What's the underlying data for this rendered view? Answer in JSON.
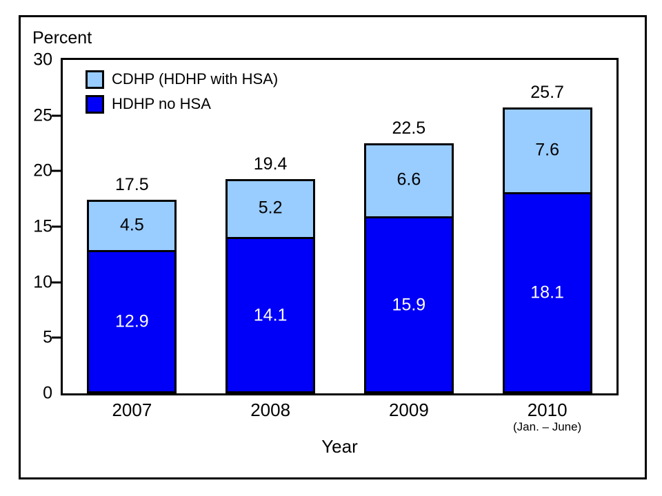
{
  "figure": {
    "y_axis_title": "Percent",
    "x_axis_title": "Year"
  },
  "legend": {
    "items": [
      {
        "label": "CDHP (HDHP with HSA)",
        "color": "#99CCFF"
      },
      {
        "label": "HDHP no HSA",
        "color": "#0000F8"
      }
    ]
  },
  "chart_data": {
    "type": "bar",
    "stacked": true,
    "title": "",
    "xlabel": "Year",
    "ylabel": "Percent",
    "ylim": [
      0,
      30
    ],
    "yticks": [
      0,
      5,
      10,
      15,
      20,
      25,
      30
    ],
    "grid": false,
    "legend_position": "top-left-inside",
    "categories": [
      "2007",
      "2008",
      "2009",
      "2010"
    ],
    "category_sublabels": [
      "",
      "",
      "",
      "(Jan. – June)"
    ],
    "series": [
      {
        "name": "HDHP no HSA",
        "color": "#0000F8",
        "label_color": "#ffffff",
        "values": [
          12.9,
          14.1,
          15.9,
          18.1
        ]
      },
      {
        "name": "CDHP (HDHP with HSA)",
        "color": "#99CCFF",
        "label_color": "#000000",
        "values": [
          4.5,
          5.2,
          6.6,
          7.6
        ]
      }
    ],
    "totals": [
      17.5,
      19.4,
      22.5,
      25.7
    ]
  }
}
